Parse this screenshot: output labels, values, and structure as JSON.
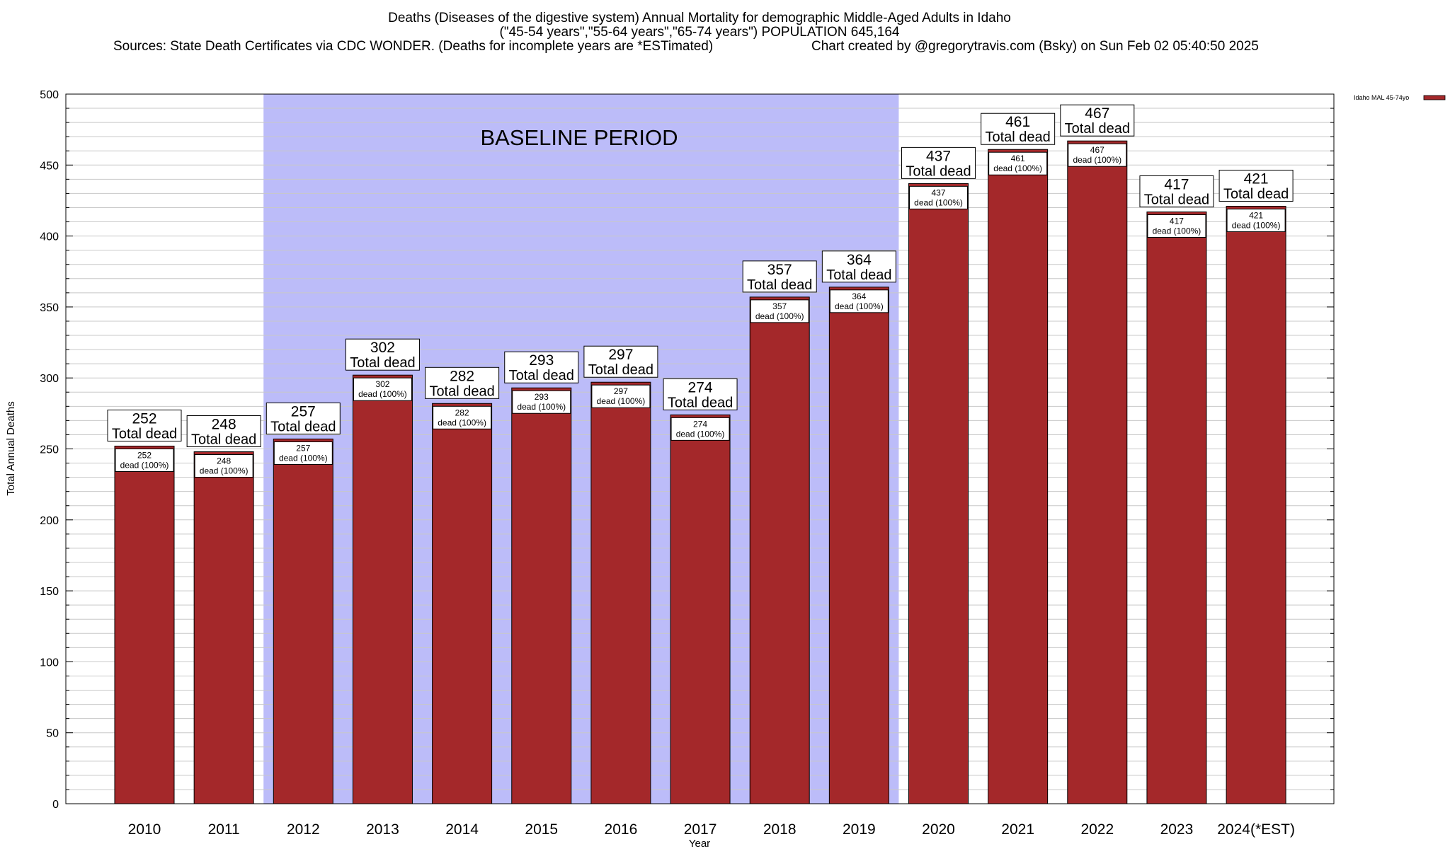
{
  "header": {
    "title_line1": "Deaths (Diseases of the digestive system) Annual Mortality for demographic Middle-Aged Adults in Idaho",
    "title_line2": "(\"45-54 years\",\"55-64 years\",\"65-74 years\") POPULATION 645,164",
    "sources": "Sources: State Death Certificates via CDC WONDER. (Deaths for incomplete years are *ESTimated)",
    "credit": "Chart created by @gregorytravis.com (Bsky) on Sun Feb 02 05:40:50 2025"
  },
  "colors": {
    "bar": "#a4282a",
    "baseline_band": "#bcbcf9",
    "grid": "#c8c8c8"
  },
  "chart_data": {
    "type": "bar",
    "xlabel": "Year",
    "ylabel": "Total Annual Deaths",
    "ylim": [
      0,
      500
    ],
    "yticks": [
      0,
      50,
      100,
      150,
      200,
      250,
      300,
      350,
      400,
      450,
      500
    ],
    "grid": true,
    "legend_position": "top-right",
    "categories": [
      "2010",
      "2011",
      "2012",
      "2013",
      "2014",
      "2015",
      "2016",
      "2017",
      "2018",
      "2019",
      "2020",
      "2021",
      "2022",
      "2023",
      "2024(*EST)"
    ],
    "series": [
      {
        "name": "Idaho MAL 45-74yo",
        "values": [
          252,
          248,
          257,
          302,
          282,
          293,
          297,
          274,
          357,
          364,
          437,
          461,
          467,
          417,
          421
        ]
      }
    ],
    "total_label_suffix": "Total dead",
    "inner_label_suffix": "dead (100%)",
    "baseline": {
      "label": "BASELINE PERIOD",
      "from": "2012",
      "to": "2019"
    }
  }
}
